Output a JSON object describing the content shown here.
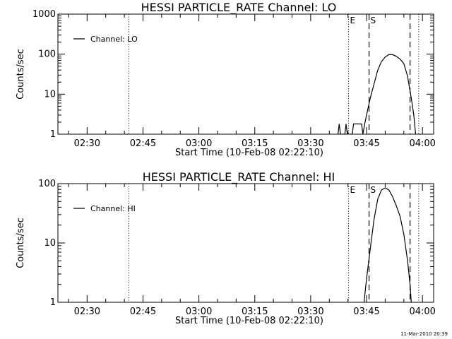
{
  "footer": {
    "timestamp": "11-Mar-2010 20:39"
  },
  "chart_data": [
    {
      "type": "line",
      "title": "HESSI PARTICLE_RATE Channel: LO",
      "xlabel": "Start Time (10-Feb-08 02:22:10)",
      "ylabel": "Counts/sec",
      "y_scale": "log",
      "ylim": [
        1,
        1000
      ],
      "y_ticks": [
        1,
        10,
        100,
        1000
      ],
      "y_tick_labels": [
        "1",
        "10",
        "100",
        "1000"
      ],
      "xlim": [
        "02:22:10",
        "04:03:00"
      ],
      "x_ticks": [
        "02:30",
        "02:45",
        "03:00",
        "03:15",
        "03:30",
        "03:45",
        "04:00"
      ],
      "x_tick_labels": [
        "02:30",
        "02:45",
        "03:00",
        "03:15",
        "03:30",
        "03:45",
        "04:00"
      ],
      "legend": {
        "placement": "top-left",
        "entries": [
          "Channel: LO"
        ]
      },
      "grid": false,
      "series": [
        {
          "name": "Channel: LO",
          "points": [
            [
              "03:37:20",
              1
            ],
            [
              "03:37:40",
              1.8
            ],
            [
              "03:38:00",
              1
            ],
            [
              "03:39:10",
              1
            ],
            [
              "03:39:30",
              1.8
            ],
            [
              "03:39:50",
              1
            ],
            [
              "03:41:10",
              1
            ],
            [
              "03:41:30",
              1.8
            ],
            [
              "03:43:40",
              1.8
            ],
            [
              "03:44:00",
              1
            ],
            [
              "03:44:30",
              1.8
            ],
            [
              "03:45:00",
              3
            ],
            [
              "03:46:00",
              8
            ],
            [
              "03:47:00",
              18
            ],
            [
              "03:48:00",
              40
            ],
            [
              "03:49:00",
              65
            ],
            [
              "03:50:00",
              85
            ],
            [
              "03:51:00",
              98
            ],
            [
              "03:52:00",
              97
            ],
            [
              "03:53:00",
              88
            ],
            [
              "03:54:00",
              75
            ],
            [
              "03:55:00",
              58
            ],
            [
              "03:56:00",
              28
            ],
            [
              "03:57:00",
              8
            ],
            [
              "03:57:40",
              3
            ],
            [
              "03:58:10",
              1
            ]
          ]
        }
      ],
      "markers": [
        {
          "time": "02:41:10",
          "style": "dotted",
          "label": ""
        },
        {
          "time": "03:40:10",
          "style": "dotted",
          "label": "E"
        },
        {
          "time": "03:45:40",
          "style": "dashed",
          "label": "S"
        },
        {
          "time": "03:56:40",
          "style": "dashed",
          "label": ""
        },
        {
          "time": "03:59:00",
          "style": "dotted",
          "label": ""
        }
      ]
    },
    {
      "type": "line",
      "title": "HESSI PARTICLE_RATE Channel: HI",
      "xlabel": "Start Time (10-Feb-08 02:22:10)",
      "ylabel": "Counts/sec",
      "y_scale": "log",
      "ylim": [
        1,
        100
      ],
      "y_ticks": [
        1,
        10,
        100
      ],
      "y_tick_labels": [
        "1",
        "10",
        "100"
      ],
      "xlim": [
        "02:22:10",
        "04:03:00"
      ],
      "x_ticks": [
        "02:30",
        "02:45",
        "03:00",
        "03:15",
        "03:30",
        "03:45",
        "04:00"
      ],
      "x_tick_labels": [
        "02:30",
        "02:45",
        "03:00",
        "03:15",
        "03:30",
        "03:45",
        "04:00"
      ],
      "legend": {
        "placement": "top-left",
        "entries": [
          "Channel: HI"
        ]
      },
      "grid": false,
      "series": [
        {
          "name": "Channel: HI",
          "points": [
            [
              "03:44:20",
              1
            ],
            [
              "03:45:00",
              2.5
            ],
            [
              "03:46:00",
              8
            ],
            [
              "03:47:00",
              25
            ],
            [
              "03:48:00",
              55
            ],
            [
              "03:49:00",
              78
            ],
            [
              "03:50:00",
              85
            ],
            [
              "03:51:00",
              78
            ],
            [
              "03:52:00",
              60
            ],
            [
              "03:53:00",
              42
            ],
            [
              "03:54:00",
              28
            ],
            [
              "03:55:00",
              14
            ],
            [
              "03:56:00",
              5
            ],
            [
              "03:56:40",
              2
            ],
            [
              "03:57:00",
              1
            ]
          ]
        }
      ],
      "markers": [
        {
          "time": "02:41:10",
          "style": "dotted",
          "label": ""
        },
        {
          "time": "03:40:10",
          "style": "dotted",
          "label": "E"
        },
        {
          "time": "03:45:40",
          "style": "dashed",
          "label": "S"
        },
        {
          "time": "03:56:40",
          "style": "dashed",
          "label": ""
        },
        {
          "time": "03:59:00",
          "style": "dotted",
          "label": ""
        }
      ]
    }
  ]
}
